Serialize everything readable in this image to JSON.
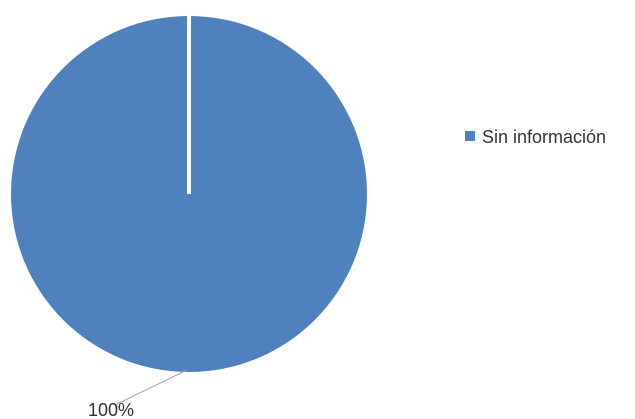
{
  "chart_data": {
    "type": "pie",
    "categories": [
      "Sin información"
    ],
    "values": [
      100
    ],
    "data_labels": [
      "100%"
    ],
    "colors": [
      "#4f81bd"
    ],
    "legend_position": "right",
    "title": ""
  }
}
